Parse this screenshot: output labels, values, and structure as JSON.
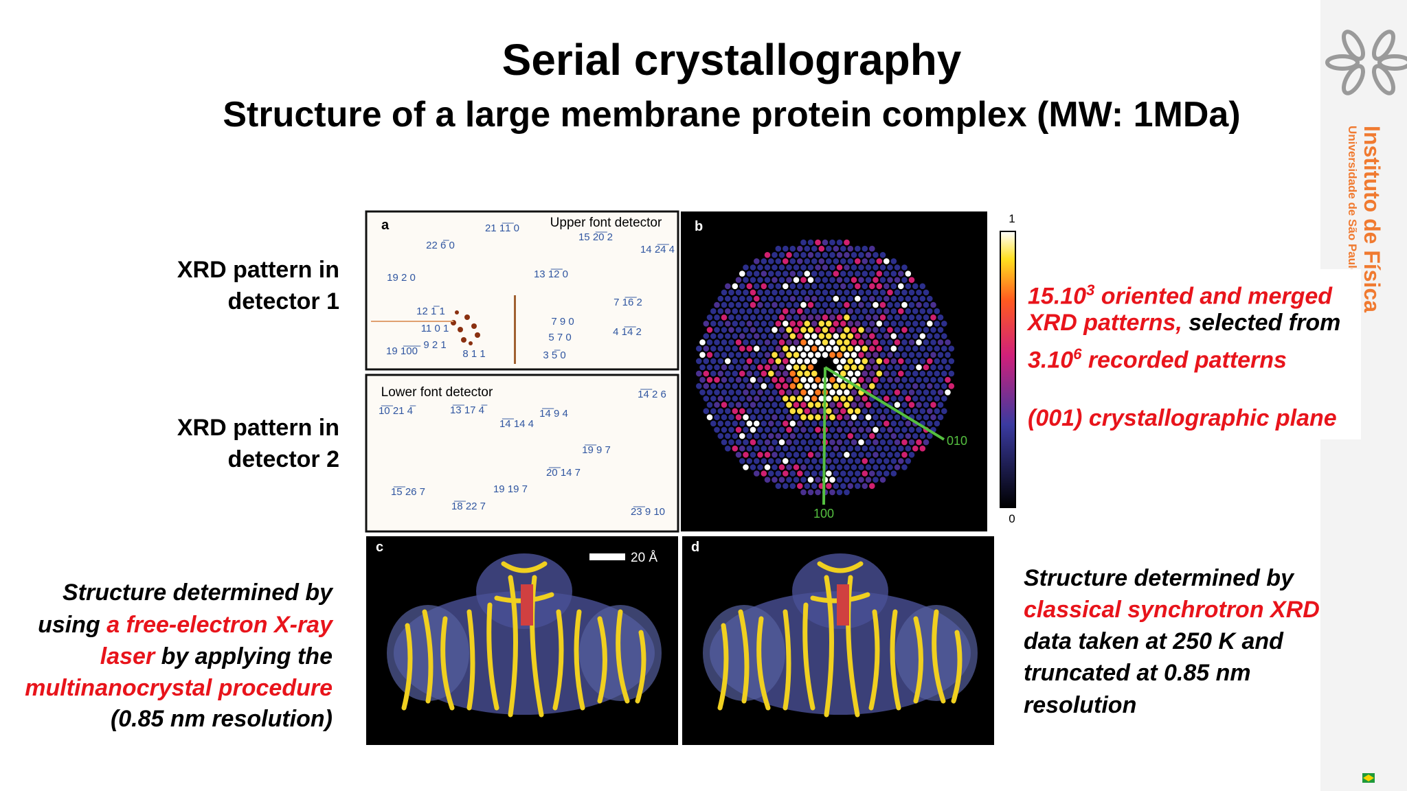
{
  "header": {
    "title": "Serial crystallography",
    "subtitle": "Structure of a large membrane protein complex (MW: 1MDa)"
  },
  "left_labels": [
    {
      "lines": [
        "XRD pattern in",
        "detector 1"
      ]
    },
    {
      "lines": [
        "XRD pattern in",
        "detector 2"
      ]
    }
  ],
  "left_caption": {
    "lines": [
      [
        {
          "text": "Structure determined by"
        }
      ],
      [
        {
          "text": "using "
        },
        {
          "text": "a free-electron X-ray",
          "color": "#e8141b"
        }
      ],
      [
        {
          "text": "laser",
          "color": "#e8141b"
        },
        {
          "text": " by applying the"
        }
      ],
      [
        {
          "text": "multinanocrystal procedure",
          "color": "#e8141b"
        }
      ],
      [
        {
          "text": "(0.85 nm resolution)"
        }
      ]
    ]
  },
  "right_top": {
    "lines": [
      [
        {
          "text": "15.10",
          "color": "#e8141b"
        },
        {
          "text": "3",
          "color": "#e8141b",
          "sup": true
        },
        {
          "text": " oriented and merged",
          "color": "#e8141b"
        }
      ],
      [
        {
          "text": "XRD patterns,",
          "color": "#e8141b"
        },
        {
          "text": " selected from"
        }
      ],
      [
        {
          "text": "3.10",
          "color": "#e8141b"
        },
        {
          "text": "6",
          "color": "#e8141b",
          "sup": true
        },
        {
          "text": " recorded patterns",
          "color": "#e8141b"
        }
      ],
      [
        {
          "text": "(001) crystallographic plane",
          "color": "#e8141b"
        }
      ]
    ]
  },
  "right_bottom": {
    "lines": [
      [
        {
          "text": "Structure determined by"
        }
      ],
      [
        {
          "text": "classical synchrotron XRD",
          "color": "#e8141b"
        }
      ],
      [
        {
          "text": "data taken at 250 K and"
        }
      ],
      [
        {
          "text": "truncated at 0.85 nm"
        }
      ],
      [
        {
          "text": "resolution"
        }
      ]
    ]
  },
  "figure": {
    "panel_a": {
      "label": "a",
      "detector": "Upper font detector",
      "indices": [
        "21 1̅1̅ 0",
        "22 6̅ 0",
        "15 2̅0̅ 2",
        "14 2̅4̅ 4",
        "19 2 0",
        "13 1̅2̅ 0",
        "12 1̅ 1",
        "11 0 1",
        "7 1̅6̅ 2",
        "7 9 0",
        "5 7 0",
        "4 1̅4̅ 2",
        "9 2 1",
        "19 1̅0̅0̅",
        "8 1 1",
        "3 5̅ 0"
      ]
    },
    "panel_a2": {
      "detector": "Lower font detector",
      "indices": [
        "1̅4̅ 2 6",
        "1̅0̅ 21 4̅",
        "1̅3̅ 17 4̅",
        "1̅4̅ 14 4",
        "1̅4̅ 9 4",
        "1̅9̅ 9 7",
        "2̅0̅ 14 7",
        "1̅5̅ 26 7",
        "19 19 7",
        "1̅8̅ 22 7",
        "2̅3̅ 9 10"
      ]
    },
    "panel_b": {
      "label": "b",
      "scale_max": "1",
      "scale_min": "0",
      "axis_010": "010",
      "axis_100": "100"
    },
    "panel_c": {
      "label": "c",
      "scale_bar": "20 Å"
    },
    "panel_d": {
      "label": "d"
    }
  },
  "sidebar": {
    "institute": "Instituto de Física",
    "university": "Universidade de São Paulo"
  }
}
